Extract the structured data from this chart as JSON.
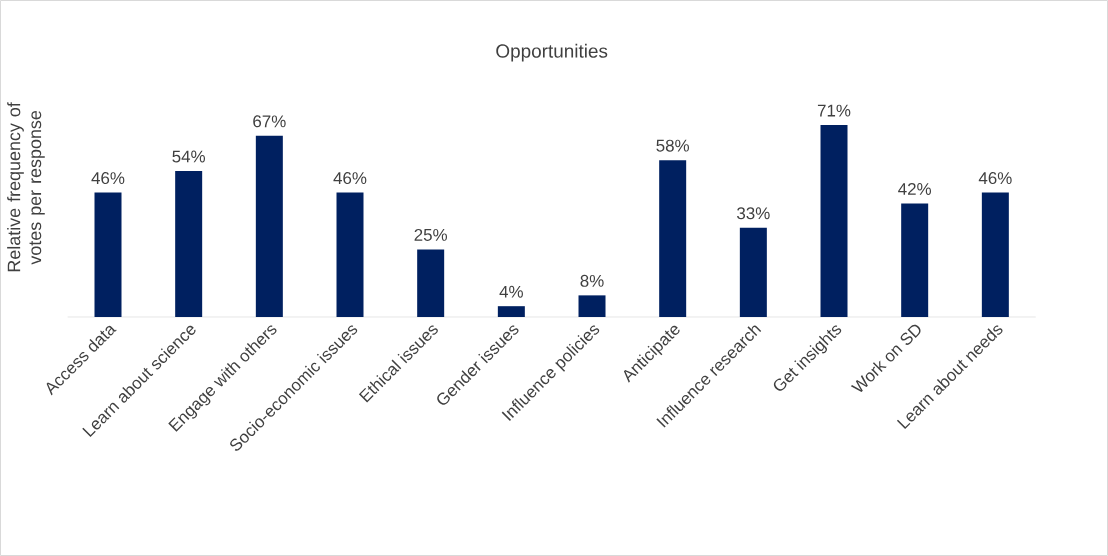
{
  "chart_data": {
    "type": "bar",
    "title": "Opportunities",
    "ylabel": "Relative frequency of votes per response",
    "categories": [
      "Access data",
      "Learn about science",
      "Engage with others",
      "Socio-economic issues",
      "Ethical issues",
      "Gender issues",
      "Influence policies",
      "Anticipate",
      "Influence research",
      "Get insights",
      "Work on SD",
      "Learn about needs"
    ],
    "values": [
      46,
      54,
      67,
      46,
      25,
      4,
      8,
      58,
      33,
      71,
      42,
      46
    ],
    "value_labels": [
      "46%",
      "54%",
      "67%",
      "46%",
      "25%",
      "4%",
      "8%",
      "58%",
      "33%",
      "71%",
      "42%",
      "46%"
    ],
    "color": "#002060",
    "tick_labels": "x"
  }
}
